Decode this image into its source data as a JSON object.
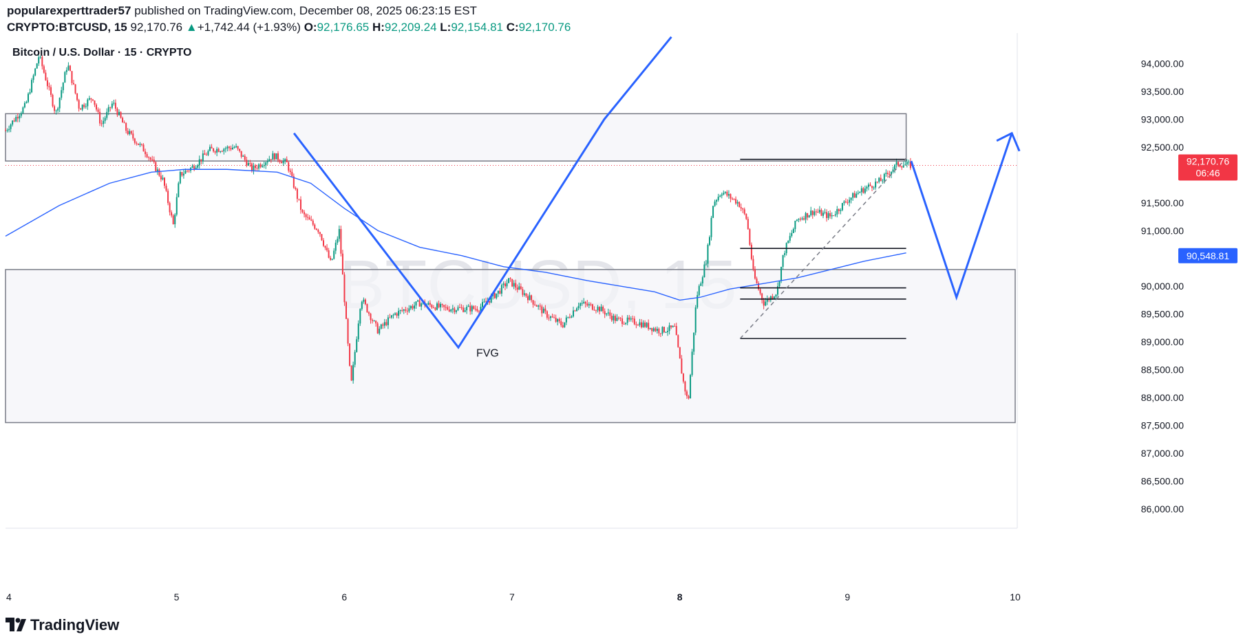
{
  "header": {
    "author": "popularexperttrader57",
    "published_text": "published on TradingView.com, December 08, 2025 06:23:15 EST",
    "symbol": "CRYPTO:BTCUSD, 15",
    "last": "92,170.76",
    "change_arrow": "▲",
    "change": "+1,742.44 (+1.93%)",
    "ohlc": {
      "o_label": "O:",
      "o": "92,176.65",
      "h_label": "H:",
      "h": "92,209.24",
      "l_label": "L:",
      "l": "92,154.81",
      "c_label": "C:",
      "c": "92,170.76"
    }
  },
  "chart_data": {
    "type": "candlestick",
    "title": "Bitcoin / U.S. Dollar · 15 · CRYPTO",
    "watermark": "BTCUSD, 15",
    "x_ticks": [
      "4",
      "5",
      "6",
      "7",
      "8",
      "9",
      "10"
    ],
    "x_tick_days": [
      4,
      5,
      6,
      7,
      8,
      9,
      10
    ],
    "y_ticks": [
      "94,000.00",
      "93,500.00",
      "93,000.00",
      "92,500.00",
      "91,500.00",
      "91,000.00",
      "90,000.00",
      "89,500.00",
      "89,000.00",
      "88,500.00",
      "88,000.00",
      "87,500.00",
      "87,000.00",
      "86,500.00",
      "86,000.00"
    ],
    "y_tick_values": [
      94000,
      93500,
      93000,
      92500,
      91500,
      91000,
      90000,
      89500,
      89000,
      88500,
      88000,
      87500,
      87000,
      86500,
      86000
    ],
    "ylim": [
      85850,
      94550
    ],
    "xlim": [
      3.98,
      10.0
    ],
    "price_label": {
      "value": 92170.76,
      "text": "92,170.76",
      "countdown": "06:46",
      "color": "#f23645"
    },
    "ma_label": {
      "value": 90548.81,
      "text": "90,548.81",
      "color": "#2962ff"
    },
    "anchors": [
      [
        3.98,
        92800
      ],
      [
        4.1,
        93250
      ],
      [
        4.18,
        94150
      ],
      [
        4.28,
        93100
      ],
      [
        4.35,
        94000
      ],
      [
        4.42,
        93200
      ],
      [
        4.5,
        93400
      ],
      [
        4.55,
        92900
      ],
      [
        4.62,
        93300
      ],
      [
        4.7,
        92800
      ],
      [
        4.82,
        92400
      ],
      [
        4.86,
        92200
      ],
      [
        4.92,
        91900
      ],
      [
        4.98,
        91100
      ],
      [
        5.02,
        92000
      ],
      [
        5.1,
        92150
      ],
      [
        5.2,
        92450
      ],
      [
        5.35,
        92500
      ],
      [
        5.45,
        92100
      ],
      [
        5.58,
        92350
      ],
      [
        5.66,
        92200
      ],
      [
        5.75,
        91300
      ],
      [
        5.85,
        91000
      ],
      [
        5.92,
        90400
      ],
      [
        5.97,
        91000
      ],
      [
        6.0,
        89800
      ],
      [
        6.04,
        88200
      ],
      [
        6.1,
        89800
      ],
      [
        6.2,
        89200
      ],
      [
        6.3,
        89500
      ],
      [
        6.45,
        89700
      ],
      [
        6.6,
        89600
      ],
      [
        6.8,
        89600
      ],
      [
        6.92,
        89900
      ],
      [
        6.98,
        90100
      ],
      [
        7.1,
        89800
      ],
      [
        7.2,
        89500
      ],
      [
        7.3,
        89300
      ],
      [
        7.4,
        89700
      ],
      [
        7.52,
        89600
      ],
      [
        7.62,
        89400
      ],
      [
        7.75,
        89350
      ],
      [
        7.88,
        89200
      ],
      [
        7.97,
        89250
      ],
      [
        8.02,
        88300
      ],
      [
        8.05,
        87900
      ],
      [
        8.1,
        89800
      ],
      [
        8.16,
        90500
      ],
      [
        8.2,
        91500
      ],
      [
        8.25,
        91700
      ],
      [
        8.3,
        91600
      ],
      [
        8.35,
        91500
      ],
      [
        8.4,
        91200
      ],
      [
        8.44,
        90200
      ],
      [
        8.5,
        89700
      ],
      [
        8.58,
        89900
      ],
      [
        8.62,
        90600
      ],
      [
        8.7,
        91200
      ],
      [
        8.8,
        91350
      ],
      [
        8.9,
        91250
      ],
      [
        9.0,
        91550
      ],
      [
        9.1,
        91750
      ],
      [
        9.2,
        91900
      ],
      [
        9.3,
        92200
      ],
      [
        9.38,
        92170
      ]
    ],
    "ma_series": [
      [
        3.98,
        90900
      ],
      [
        4.3,
        91450
      ],
      [
        4.6,
        91850
      ],
      [
        4.85,
        92050
      ],
      [
        5.05,
        92100
      ],
      [
        5.3,
        92100
      ],
      [
        5.6,
        92050
      ],
      [
        5.8,
        91850
      ],
      [
        6.0,
        91400
      ],
      [
        6.2,
        91000
      ],
      [
        6.45,
        90700
      ],
      [
        6.7,
        90550
      ],
      [
        6.95,
        90350
      ],
      [
        7.2,
        90250
      ],
      [
        7.45,
        90100
      ],
      [
        7.65,
        90000
      ],
      [
        7.85,
        89900
      ],
      [
        8.0,
        89750
      ],
      [
        8.12,
        89800
      ],
      [
        8.3,
        89950
      ],
      [
        8.5,
        90050
      ],
      [
        8.7,
        90150
      ],
      [
        8.9,
        90300
      ],
      [
        9.1,
        90450
      ],
      [
        9.35,
        90600
      ]
    ],
    "zones": [
      {
        "y1": 92250,
        "y2": 93100,
        "x1": 3.98,
        "x2": 9.35
      },
      {
        "y1": 87550,
        "y2": 90300,
        "x1": 3.98,
        "x2": 10.0
      }
    ],
    "levels": [
      {
        "y": 92280,
        "x1": 8.36,
        "x2": 9.35
      },
      {
        "y": 90680,
        "x1": 8.36,
        "x2": 9.35
      },
      {
        "y": 89970,
        "x1": 8.36,
        "x2": 9.35
      },
      {
        "y": 89770,
        "x1": 8.36,
        "x2": 9.35
      },
      {
        "y": 89060,
        "x1": 8.36,
        "x2": 9.35
      }
    ],
    "current_price_line": 92170.76,
    "trendline_dashed": [
      [
        8.36,
        89060
      ],
      [
        9.35,
        92300
      ]
    ],
    "drawings": [
      {
        "name": "v-pattern",
        "points": [
          [
            5.7,
            92750
          ],
          [
            6.68,
            88900
          ],
          [
            7.55,
            93000
          ],
          [
            7.95,
            94480
          ]
        ],
        "arrow": false
      },
      {
        "name": "projection-path",
        "points": [
          [
            9.38,
            92250
          ],
          [
            9.65,
            89800
          ],
          [
            9.98,
            92750
          ]
        ],
        "arrow": true
      }
    ],
    "annotation": {
      "text": "FVG",
      "x": 6.68,
      "y": 88800
    }
  },
  "footer": {
    "brand": "TradingView"
  },
  "colors": {
    "up": "#089981",
    "down": "#f23645",
    "drawing": "#2962ff",
    "ma": "#2962ff",
    "zone_fill": "#f4f4f8",
    "zone_border": "#787b86"
  }
}
